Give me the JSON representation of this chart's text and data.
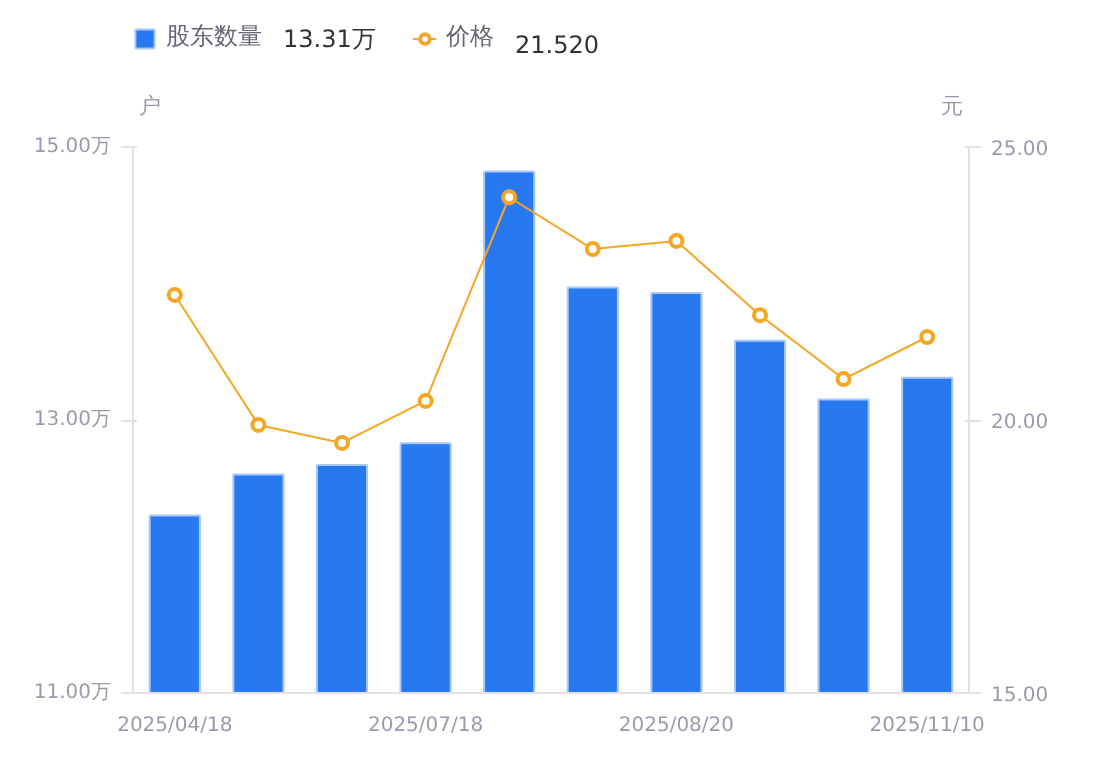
{
  "chart_data": {
    "type": "bar",
    "categories": [
      "2025/04/18",
      null,
      null,
      "2025/07/18",
      null,
      null,
      "2025/08/20",
      null,
      null,
      "2025/11/10"
    ],
    "series": [
      {
        "name": "股东数量",
        "type": "bar",
        "color": "#2878f0",
        "values": [
          12.3,
          12.6,
          12.67,
          12.83,
          14.82,
          13.97,
          13.93,
          13.58,
          13.15,
          13.31
        ]
      },
      {
        "name": "价格",
        "type": "line",
        "axis": "y2",
        "color": "#f5a623",
        "values": [
          22.29,
          19.91,
          19.58,
          20.35,
          24.08,
          23.13,
          23.28,
          21.92,
          20.75,
          21.52
        ]
      }
    ],
    "annotations": [
      "13.31万",
      "21.520"
    ],
    "ylabel": "户",
    "y2label": "元",
    "ylim": [
      11,
      15
    ],
    "yticks": [
      {
        "value": 11,
        "label": "11.00万"
      },
      {
        "value": 13,
        "label": "13.00万"
      },
      {
        "value": 15,
        "label": "15.00万"
      }
    ],
    "y2lim": [
      15,
      25
    ],
    "y2ticks": [
      {
        "value": 15,
        "label": "15.00"
      },
      {
        "value": 20,
        "label": "20.00"
      },
      {
        "value": 25,
        "label": "25.00"
      }
    ],
    "legend": "top left",
    "marker": "circle",
    "grid": false
  }
}
